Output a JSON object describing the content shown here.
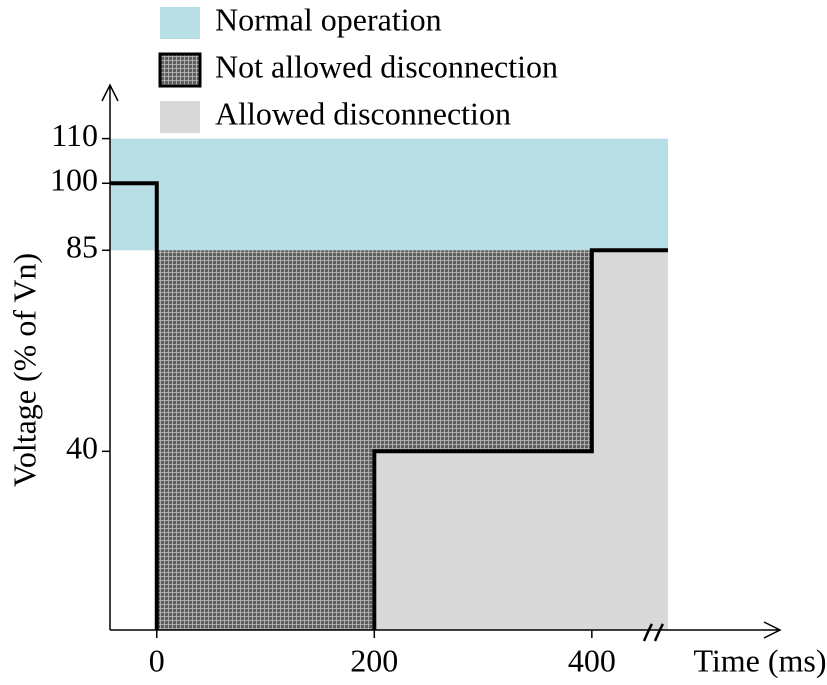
{
  "chart_data": {
    "type": "area",
    "x_label": "Time (ms)",
    "y_label": "Voltage (% of Vn)",
    "xlim": [
      -43,
      573
    ],
    "ylim": [
      0,
      122
    ],
    "xticks": [
      0,
      200,
      400
    ],
    "yticks": [
      40,
      85,
      100,
      110
    ],
    "series": [
      {
        "name": "Normal operation",
        "color": "#b8dee6",
        "x": [
          -43,
          470,
          470,
          -43
        ],
        "y": [
          85,
          85,
          110,
          110
        ]
      },
      {
        "name": "Not allowed disconnection",
        "color": "#777777",
        "x": [
          0,
          0,
          400,
          400,
          200,
          200
        ],
        "y": [
          0,
          85,
          85,
          40,
          40,
          0
        ]
      },
      {
        "name": "Allowed disconnection",
        "color": "#d9d9d9",
        "x": [
          200,
          200,
          400,
          400,
          470,
          470
        ],
        "y": [
          0,
          40,
          40,
          85,
          85,
          0
        ]
      }
    ],
    "step_line": {
      "color": "#000000",
      "x": [
        -43,
        0,
        0,
        null,
        200,
        200,
        400,
        400,
        470
      ],
      "y": [
        100,
        100,
        0,
        null,
        0,
        40,
        40,
        85,
        85
      ]
    }
  }
}
